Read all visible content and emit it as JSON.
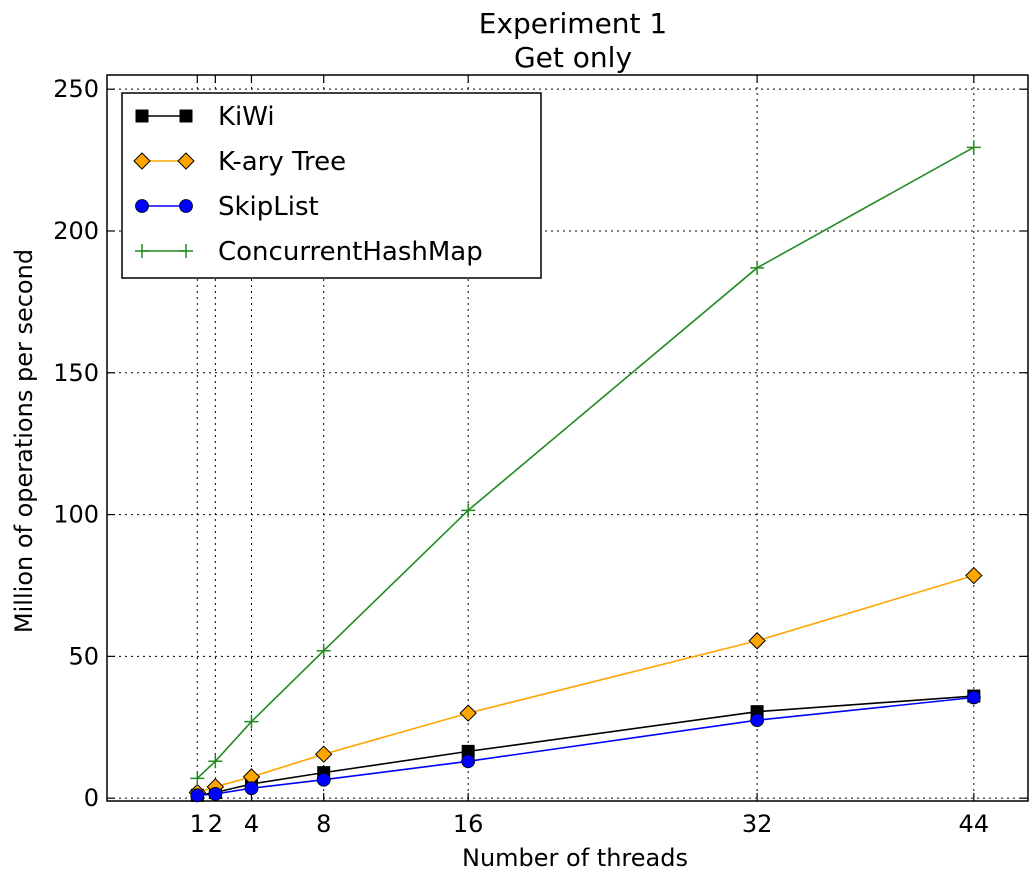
{
  "chart_data": {
    "type": "line",
    "title": "Experiment 1",
    "subtitle": "Get only",
    "xlabel": "Number of threads",
    "ylabel": "Million of operations per second",
    "x": [
      1,
      2,
      4,
      8,
      16,
      32,
      44
    ],
    "xticks": [
      "1",
      "2",
      "4",
      "8",
      "16",
      "32",
      "44"
    ],
    "yticks": [
      "0",
      "50",
      "100",
      "150",
      "200",
      "250"
    ],
    "xlim": [
      -4,
      47
    ],
    "ylim": [
      -1,
      255
    ],
    "grid": true,
    "legend_position": "top-left",
    "series": [
      {
        "name": "KiWi",
        "color": "#000000",
        "marker": "square",
        "values": [
          1,
          2,
          5,
          9,
          16.5,
          30.5,
          36
        ]
      },
      {
        "name": "K-ary Tree",
        "color": "#ffa500",
        "marker": "diamond",
        "values": [
          2,
          4,
          7.5,
          15.5,
          30,
          55.5,
          78.5
        ]
      },
      {
        "name": "SkipList",
        "color": "#0000ff",
        "marker": "circle",
        "values": [
          1,
          1.5,
          3.5,
          6.5,
          13,
          27.5,
          35.5
        ]
      },
      {
        "name": "ConcurrentHashMap",
        "color": "#228b22",
        "marker": "plus",
        "values": [
          7,
          13,
          27,
          52,
          101.5,
          187,
          229.5
        ]
      }
    ]
  }
}
